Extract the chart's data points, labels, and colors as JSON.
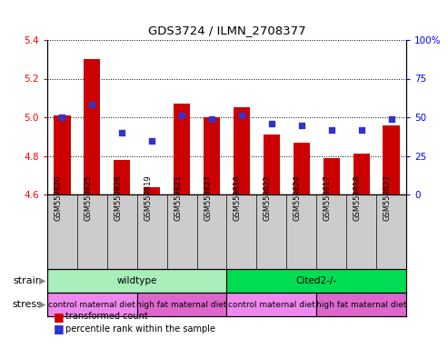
{
  "title": "GDS3724 / ILMN_2708377",
  "samples": [
    "GSM559820",
    "GSM559825",
    "GSM559826",
    "GSM559819",
    "GSM559821",
    "GSM559827",
    "GSM559816",
    "GSM559822",
    "GSM559824",
    "GSM559817",
    "GSM559818",
    "GSM559823"
  ],
  "transformed_count": [
    5.01,
    5.3,
    4.78,
    4.64,
    5.07,
    5.0,
    5.05,
    4.91,
    4.87,
    4.79,
    4.81,
    4.96
  ],
  "percentile_rank": [
    50,
    58,
    40,
    35,
    51,
    49,
    51,
    46,
    45,
    42,
    42,
    49
  ],
  "ylim_left": [
    4.6,
    5.4
  ],
  "ylim_right": [
    0,
    100
  ],
  "yticks_left": [
    4.6,
    4.8,
    5.0,
    5.2,
    5.4
  ],
  "yticks_right": [
    0,
    25,
    50,
    75,
    100
  ],
  "bar_color": "#cc0000",
  "dot_color": "#3333cc",
  "bar_base": 4.6,
  "strain_groups": [
    {
      "label": "wildtype",
      "start": 0,
      "end": 6,
      "color": "#aaeebb"
    },
    {
      "label": "Cited2-/-",
      "start": 6,
      "end": 12,
      "color": "#00dd55"
    }
  ],
  "stress_groups": [
    {
      "label": "control maternal diet",
      "start": 0,
      "end": 3,
      "color": "#ee88ee"
    },
    {
      "label": "high fat maternal diet",
      "start": 3,
      "end": 6,
      "color": "#dd66cc"
    },
    {
      "label": "control maternal diet",
      "start": 6,
      "end": 9,
      "color": "#ee88ee"
    },
    {
      "label": "high fat maternal diet",
      "start": 9,
      "end": 12,
      "color": "#dd66cc"
    }
  ],
  "strain_label": "strain",
  "stress_label": "stress",
  "legend_transformed": "transformed count",
  "legend_percentile": "percentile rank within the sample"
}
